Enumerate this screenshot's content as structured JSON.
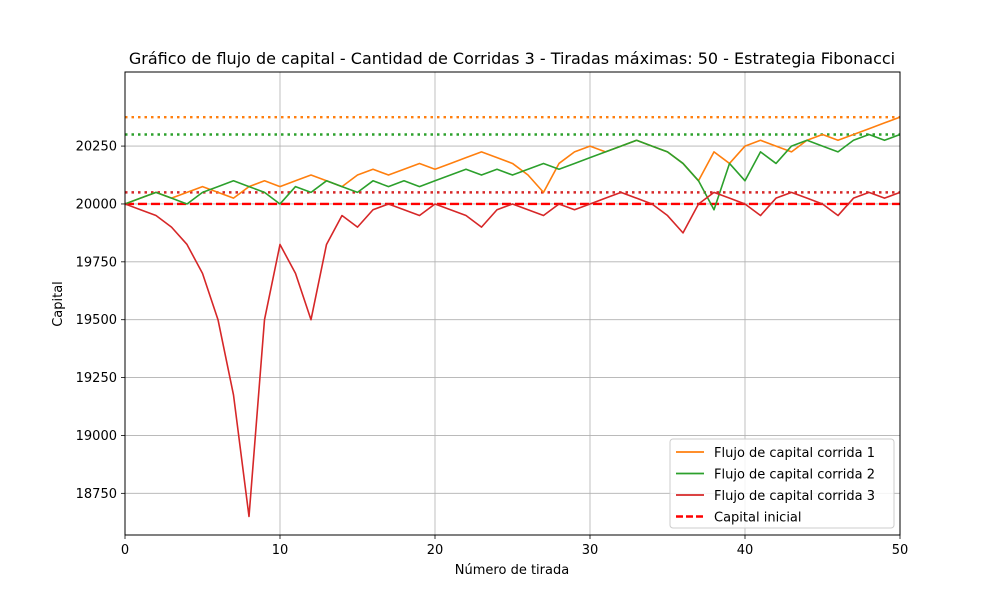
{
  "chart_data": {
    "type": "line",
    "title": "Gráfico de flujo de capital - Cantidad de Corridas 3 - Tiradas máximas: 50 - Estrategia Fibonacci",
    "xlabel": "Número de tirada",
    "ylabel": "Capital",
    "xlim": [
      0,
      50
    ],
    "ylim": [
      18570,
      20570
    ],
    "xticks": [
      0,
      10,
      20,
      30,
      40,
      50
    ],
    "yticks": [
      18750,
      19000,
      19250,
      19500,
      19750,
      20000,
      20250
    ],
    "grid": true,
    "legend_position": "lower-right",
    "series": [
      {
        "name": "Flujo de capital corrida 1",
        "color": "#ff7f0e",
        "x": [
          0,
          1,
          2,
          3,
          4,
          5,
          6,
          7,
          8,
          9,
          10,
          11,
          12,
          13,
          14,
          15,
          16,
          17,
          18,
          19,
          20,
          21,
          22,
          23,
          24,
          25,
          26,
          27,
          28,
          29,
          30,
          31,
          32,
          33,
          34,
          35,
          36,
          37,
          38,
          39,
          40,
          41,
          42,
          43,
          44,
          45,
          46,
          47,
          48,
          49,
          50
        ],
        "values": [
          20000,
          20025,
          20050,
          20025,
          20050,
          20075,
          20050,
          20025,
          20075,
          20100,
          20075,
          20100,
          20125,
          20100,
          20075,
          20125,
          20150,
          20125,
          20150,
          20175,
          20150,
          20175,
          20200,
          20225,
          20200,
          20175,
          20125,
          20050,
          20175,
          20225,
          20250,
          20225,
          20250,
          20275,
          20250,
          20225,
          20175,
          20100,
          20225,
          20175,
          20250,
          20275,
          20250,
          20225,
          20275,
          20300,
          20275,
          20300,
          20325,
          20350,
          20375
        ]
      },
      {
        "name": "Flujo de capital corrida 2",
        "color": "#2ca02c",
        "x": [
          0,
          1,
          2,
          3,
          4,
          5,
          6,
          7,
          8,
          9,
          10,
          11,
          12,
          13,
          14,
          15,
          16,
          17,
          18,
          19,
          20,
          21,
          22,
          23,
          24,
          25,
          26,
          27,
          28,
          29,
          30,
          31,
          32,
          33,
          34,
          35,
          36,
          37,
          38,
          39,
          40,
          41,
          42,
          43,
          44,
          45,
          46,
          47,
          48,
          49,
          50
        ],
        "values": [
          20000,
          20025,
          20050,
          20025,
          20000,
          20050,
          20075,
          20100,
          20075,
          20050,
          20000,
          20075,
          20050,
          20100,
          20075,
          20050,
          20100,
          20075,
          20100,
          20075,
          20100,
          20125,
          20150,
          20125,
          20150,
          20125,
          20150,
          20175,
          20150,
          20175,
          20200,
          20225,
          20250,
          20275,
          20250,
          20225,
          20175,
          20100,
          19975,
          20175,
          20100,
          20225,
          20175,
          20250,
          20275,
          20250,
          20225,
          20275,
          20300,
          20275,
          20300
        ]
      },
      {
        "name": "Flujo de capital corrida 3",
        "color": "#d62728",
        "x": [
          0,
          1,
          2,
          3,
          4,
          5,
          6,
          7,
          8,
          9,
          10,
          11,
          12,
          13,
          14,
          15,
          16,
          17,
          18,
          19,
          20,
          21,
          22,
          23,
          24,
          25,
          26,
          27,
          28,
          29,
          30,
          31,
          32,
          33,
          34,
          35,
          36,
          37,
          38,
          39,
          40,
          41,
          42,
          43,
          44,
          45,
          46,
          47,
          48,
          49,
          50
        ],
        "values": [
          20000,
          19975,
          19950,
          19900,
          19825,
          19700,
          19500,
          19175,
          18650,
          19500,
          19825,
          19700,
          19500,
          19825,
          19950,
          19900,
          19975,
          20000,
          19975,
          19950,
          20000,
          19975,
          19950,
          19900,
          19975,
          20000,
          19975,
          19950,
          20000,
          19975,
          20000,
          20025,
          20050,
          20025,
          20000,
          19950,
          19875,
          20000,
          20050,
          20025,
          20000,
          19950,
          20025,
          20050,
          20025,
          20000,
          19950,
          20025,
          20050,
          20025,
          20050
        ]
      }
    ],
    "reference_lines": [
      {
        "name": "Capital inicial",
        "value": 20000,
        "color": "#ff0000",
        "style": "dashed"
      },
      {
        "value": 20375,
        "color": "#ff7f0e",
        "style": "dotted"
      },
      {
        "value": 20300,
        "color": "#2ca02c",
        "style": "dotted"
      },
      {
        "value": 20050,
        "color": "#d62728",
        "style": "dotted"
      }
    ]
  }
}
